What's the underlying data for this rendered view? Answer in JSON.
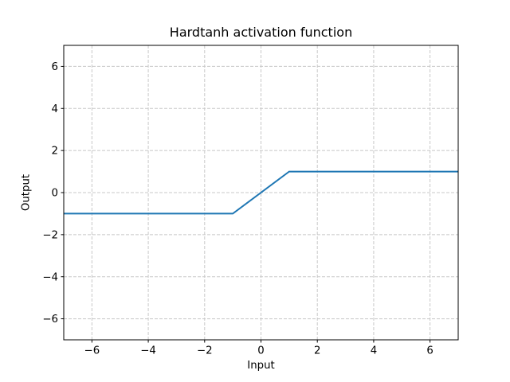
{
  "chart_data": {
    "type": "line",
    "title": "Hardtanh activation function",
    "xlabel": "Input",
    "ylabel": "Output",
    "xlim": [
      -7,
      7
    ],
    "ylim": [
      -7,
      7
    ],
    "xticks": [
      -6,
      -4,
      -2,
      0,
      2,
      4,
      6
    ],
    "yticks": [
      -6,
      -4,
      -2,
      0,
      2,
      4,
      6
    ],
    "xticklabels": [
      "−6",
      "−4",
      "−2",
      "0",
      "2",
      "4",
      "6"
    ],
    "yticklabels": [
      "−6",
      "−4",
      "−2",
      "0",
      "2",
      "4",
      "6"
    ],
    "grid": true,
    "grid_style": "dashed",
    "legend": false,
    "series": [
      {
        "name": "hardtanh",
        "color": "#1f77b4",
        "points": [
          [
            -7,
            -1
          ],
          [
            -1,
            -1
          ],
          [
            1,
            1
          ],
          [
            7,
            1
          ]
        ]
      }
    ],
    "colors": {
      "line": "#1f77b4",
      "grid": "#c8c8c8",
      "spine": "#000000",
      "background": "#ffffff",
      "text": "#000000"
    }
  }
}
